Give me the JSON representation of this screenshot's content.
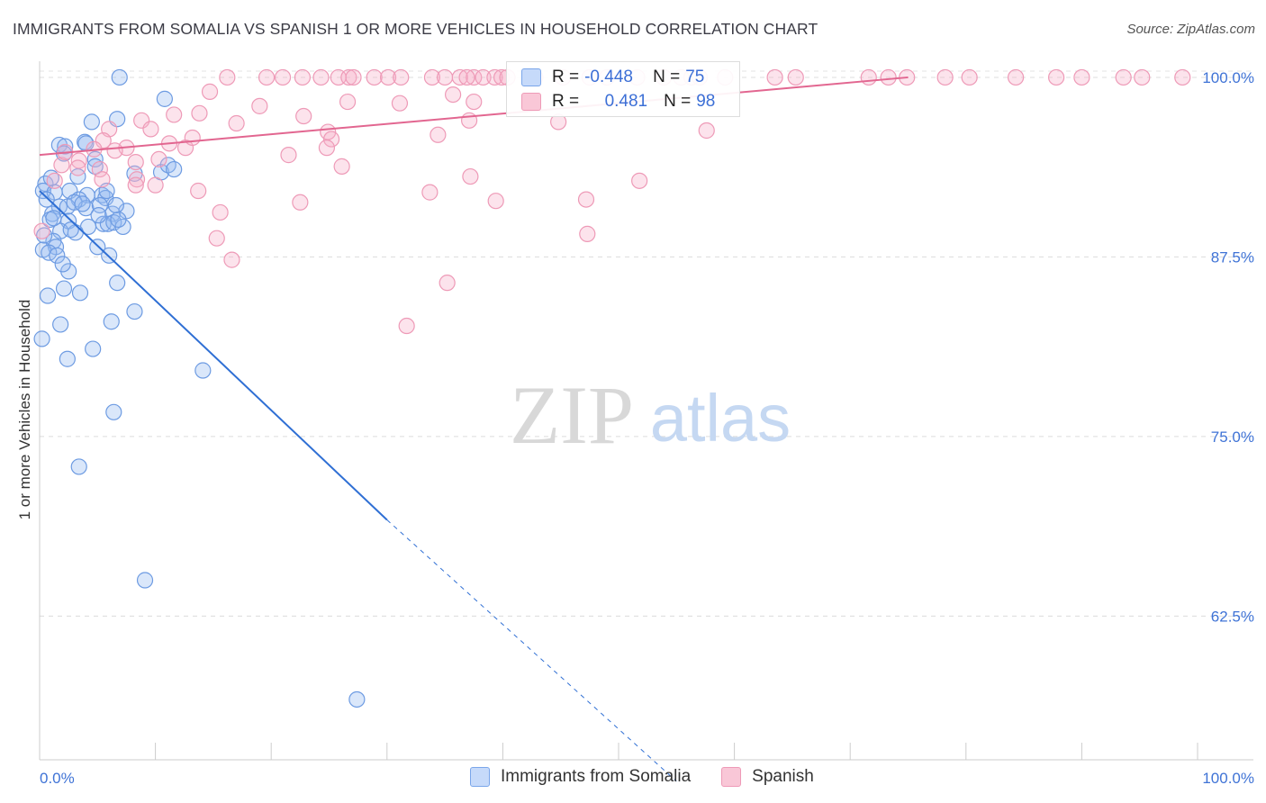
{
  "title": "IMMIGRANTS FROM SOMALIA VS SPANISH 1 OR MORE VEHICLES IN HOUSEHOLD CORRELATION CHART",
  "source": "Source: ZipAtlas.com",
  "watermark": {
    "zip": "ZIP",
    "atlas": "atlas"
  },
  "legend": {
    "rows": [
      {
        "r_label": "R = ",
        "r_value": "-0.448",
        "n_label": "N = ",
        "n_value": "75"
      },
      {
        "r_label": "R = ",
        "r_value": "0.481",
        "n_label": "N = ",
        "n_value": "98"
      }
    ]
  },
  "chart_data": {
    "type": "scatter",
    "title": "IMMIGRANTS FROM SOMALIA VS SPANISH 1 OR MORE VEHICLES IN HOUSEHOLD CORRELATION CHART",
    "xlabel": "",
    "ylabel": "1 or more Vehicles in Household",
    "xlim": [
      0,
      100
    ],
    "ylim": [
      52.5,
      101.5
    ],
    "x_tick_labels": [
      "0.0%",
      "100.0%"
    ],
    "y_ticks": [
      {
        "value": 100,
        "label": "100.0%"
      },
      {
        "value": 87.5,
        "label": "87.5%"
      },
      {
        "value": 75,
        "label": "75.0%"
      },
      {
        "value": 62.5,
        "label": "62.5%"
      }
    ],
    "grid": true,
    "colors": {
      "somalia": "#5b8fe0",
      "spanish": "#ec8aaa",
      "somalia_line": "#2f6fd4",
      "spanish_line": "#e26690",
      "axis_text": "#3f73d6"
    },
    "series": [
      {
        "name": "Immigrants from Somalia",
        "R": -0.448,
        "N": 75,
        "trend": {
          "x0": 0,
          "y0": 92.1,
          "x1": 30,
          "y1": 69.2,
          "dash_x1": 55,
          "dash_y1": 51.0
        },
        "points": [
          [
            6.9,
            100
          ],
          [
            10.8,
            98.5
          ],
          [
            4.5,
            96.9
          ],
          [
            6.7,
            97.1
          ],
          [
            1.7,
            95.3
          ],
          [
            3.9,
            95.5
          ],
          [
            2.2,
            95.2
          ],
          [
            2.1,
            94.7
          ],
          [
            4.8,
            94.3
          ],
          [
            8.2,
            93.3
          ],
          [
            10.5,
            93.4
          ],
          [
            11.1,
            93.9
          ],
          [
            11.6,
            93.6
          ],
          [
            0.5,
            92.6
          ],
          [
            0.3,
            92.1
          ],
          [
            1.3,
            92.0
          ],
          [
            2.6,
            92.1
          ],
          [
            4.1,
            91.8
          ],
          [
            5.4,
            91.8
          ],
          [
            3.4,
            91.5
          ],
          [
            0.6,
            91.5
          ],
          [
            1.7,
            91.0
          ],
          [
            2.4,
            91.0
          ],
          [
            4.0,
            90.9
          ],
          [
            5.7,
            91.6
          ],
          [
            5.2,
            91.1
          ],
          [
            6.3,
            90.5
          ],
          [
            1.1,
            90.5
          ],
          [
            0.9,
            90.1
          ],
          [
            2.5,
            90.0
          ],
          [
            4.2,
            89.6
          ],
          [
            5.5,
            89.8
          ],
          [
            5.9,
            89.8
          ],
          [
            6.4,
            89.9
          ],
          [
            7.2,
            89.6
          ],
          [
            1.8,
            89.3
          ],
          [
            3.1,
            89.2
          ],
          [
            1.2,
            88.6
          ],
          [
            1.4,
            88.2
          ],
          [
            0.3,
            88.0
          ],
          [
            0.8,
            87.8
          ],
          [
            1.5,
            87.6
          ],
          [
            6.0,
            87.6
          ],
          [
            2.5,
            86.5
          ],
          [
            6.7,
            85.7
          ],
          [
            2.1,
            85.3
          ],
          [
            3.5,
            85.0
          ],
          [
            0.7,
            84.8
          ],
          [
            8.2,
            83.7
          ],
          [
            1.8,
            82.8
          ],
          [
            6.2,
            83.0
          ],
          [
            0.2,
            81.8
          ],
          [
            2.4,
            80.4
          ],
          [
            4.6,
            81.1
          ],
          [
            14.1,
            79.6
          ],
          [
            6.4,
            76.7
          ],
          [
            3.4,
            72.9
          ],
          [
            9.1,
            65.0
          ],
          [
            27.4,
            56.7
          ],
          [
            4.0,
            95.4
          ],
          [
            3.0,
            91.3
          ],
          [
            5.0,
            88.2
          ],
          [
            2.0,
            87.0
          ],
          [
            1.0,
            93.0
          ],
          [
            7.5,
            90.7
          ],
          [
            6.6,
            91.1
          ],
          [
            3.3,
            93.1
          ],
          [
            1.2,
            90.2
          ],
          [
            4.8,
            93.8
          ],
          [
            2.7,
            89.4
          ],
          [
            5.1,
            90.4
          ],
          [
            0.4,
            89.0
          ],
          [
            6.8,
            90.1
          ],
          [
            3.7,
            91.2
          ],
          [
            5.8,
            92.1
          ]
        ]
      },
      {
        "name": "Spanish",
        "R": 0.481,
        "N": 98,
        "trend": {
          "x0": 0,
          "y0": 94.6,
          "x1": 75,
          "y1": 100.0
        },
        "points": [
          [
            16.2,
            100
          ],
          [
            19.6,
            100
          ],
          [
            21.0,
            100
          ],
          [
            22.7,
            100
          ],
          [
            24.3,
            100
          ],
          [
            25.8,
            100
          ],
          [
            26.7,
            100
          ],
          [
            27.1,
            100
          ],
          [
            28.9,
            100
          ],
          [
            30.1,
            100
          ],
          [
            31.2,
            100
          ],
          [
            33.9,
            100
          ],
          [
            36.3,
            100
          ],
          [
            37.5,
            100
          ],
          [
            38.3,
            100
          ],
          [
            39.3,
            100
          ],
          [
            39.9,
            100
          ],
          [
            40.4,
            100
          ],
          [
            42.8,
            100
          ],
          [
            45.2,
            100
          ],
          [
            49.0,
            100
          ],
          [
            53.9,
            100
          ],
          [
            55.4,
            100
          ],
          [
            56.3,
            100
          ],
          [
            57.0,
            100
          ],
          [
            59.2,
            100
          ],
          [
            63.5,
            100
          ],
          [
            65.3,
            100
          ],
          [
            71.6,
            100
          ],
          [
            73.3,
            100
          ],
          [
            74.9,
            100
          ],
          [
            78.2,
            100
          ],
          [
            80.3,
            100
          ],
          [
            84.3,
            100
          ],
          [
            87.8,
            100
          ],
          [
            90.0,
            100
          ],
          [
            93.6,
            100
          ],
          [
            95.2,
            100
          ],
          [
            98.7,
            100
          ],
          [
            35.0,
            100
          ],
          [
            47.5,
            100
          ],
          [
            51.6,
            100
          ],
          [
            36.9,
            100
          ],
          [
            14.7,
            99.0
          ],
          [
            26.6,
            98.3
          ],
          [
            31.1,
            98.2
          ],
          [
            19.0,
            98.0
          ],
          [
            35.7,
            98.8
          ],
          [
            37.5,
            98.3
          ],
          [
            13.8,
            97.5
          ],
          [
            22.8,
            97.3
          ],
          [
            11.6,
            97.4
          ],
          [
            8.8,
            97.0
          ],
          [
            17.0,
            96.8
          ],
          [
            37.1,
            97.0
          ],
          [
            44.8,
            96.9
          ],
          [
            57.6,
            96.3
          ],
          [
            9.6,
            96.4
          ],
          [
            6.0,
            96.4
          ],
          [
            24.9,
            96.2
          ],
          [
            34.4,
            96.0
          ],
          [
            25.2,
            95.7
          ],
          [
            5.5,
            95.6
          ],
          [
            11.2,
            95.4
          ],
          [
            12.6,
            95.1
          ],
          [
            13.2,
            95.8
          ],
          [
            24.8,
            95.1
          ],
          [
            4.7,
            95.0
          ],
          [
            7.5,
            95.1
          ],
          [
            6.5,
            94.9
          ],
          [
            21.5,
            94.6
          ],
          [
            3.4,
            94.2
          ],
          [
            8.3,
            94.1
          ],
          [
            10.3,
            94.3
          ],
          [
            1.9,
            93.9
          ],
          [
            3.3,
            93.7
          ],
          [
            26.1,
            93.8
          ],
          [
            37.2,
            93.1
          ],
          [
            5.2,
            93.6
          ],
          [
            8.4,
            92.9
          ],
          [
            5.4,
            92.9
          ],
          [
            10.0,
            92.5
          ],
          [
            8.3,
            92.5
          ],
          [
            13.7,
            92.1
          ],
          [
            33.7,
            92.0
          ],
          [
            51.8,
            92.8
          ],
          [
            22.5,
            91.3
          ],
          [
            47.2,
            91.5
          ],
          [
            39.4,
            91.4
          ],
          [
            15.6,
            90.6
          ],
          [
            47.3,
            89.1
          ],
          [
            15.3,
            88.8
          ],
          [
            16.6,
            87.3
          ],
          [
            35.2,
            85.7
          ],
          [
            31.7,
            82.7
          ],
          [
            0.2,
            89.3
          ],
          [
            2.2,
            94.8
          ],
          [
            1.3,
            92.8
          ]
        ]
      }
    ]
  }
}
